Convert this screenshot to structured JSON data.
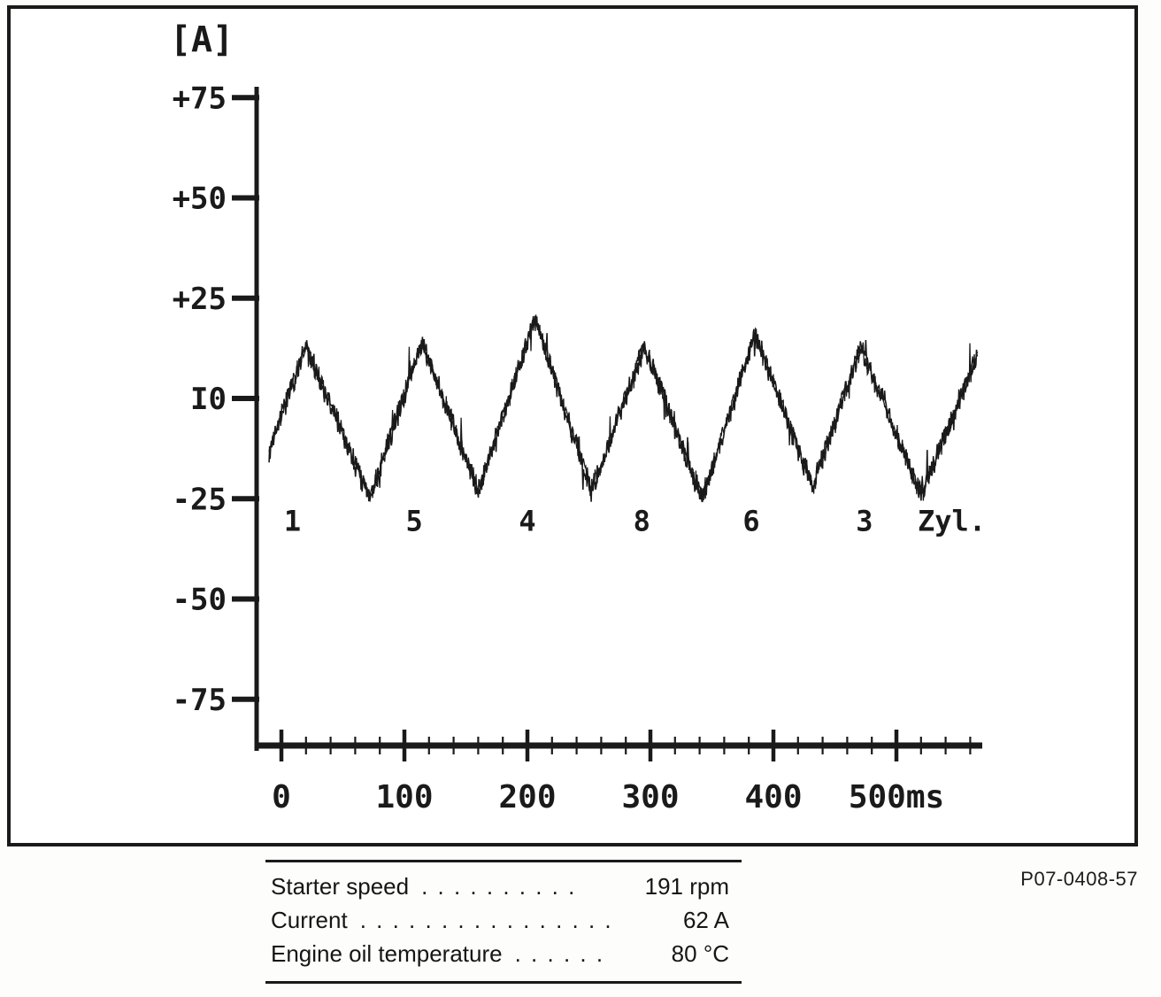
{
  "figure": {
    "ref_number": "P07-0408-57",
    "ink_color": "#1a1a1a"
  },
  "chart_data": {
    "type": "line",
    "y_unit_label": "[A]",
    "y_ticks": [
      {
        "label": "+75",
        "value": 75
      },
      {
        "label": "+50",
        "value": 50
      },
      {
        "label": "+25",
        "value": 25
      },
      {
        "label": "I0",
        "value": 0
      },
      {
        "label": "-25",
        "value": -25
      },
      {
        "label": "-50",
        "value": -50
      },
      {
        "label": "-75",
        "value": -75
      }
    ],
    "x_ticks": [
      {
        "label": "0",
        "value": 0
      },
      {
        "label": "100",
        "value": 100
      },
      {
        "label": "200",
        "value": 200
      },
      {
        "label": "300",
        "value": 300
      },
      {
        "label": "400",
        "value": 400
      },
      {
        "label": "500ms",
        "value": 500
      }
    ],
    "x_minor_tick_step_ms": 20,
    "x_range_ms": [
      0,
      565
    ],
    "y_range_a": [
      -90,
      85
    ],
    "cylinder_labels": [
      {
        "text": "1",
        "ms": 9
      },
      {
        "text": "5",
        "ms": 108
      },
      {
        "text": "4",
        "ms": 200
      },
      {
        "text": "8",
        "ms": 293
      },
      {
        "text": "6",
        "ms": 382
      },
      {
        "text": "3",
        "ms": 474
      },
      {
        "text": "Zyl.",
        "ms": 545
      }
    ],
    "cylinder_label_level_a": -33,
    "waveform": {
      "noise_amp_a": 3.2,
      "control_points_ms_a": [
        [
          -10,
          -13
        ],
        [
          20,
          13
        ],
        [
          72,
          -25
        ],
        [
          114,
          14
        ],
        [
          160,
          -23
        ],
        [
          206,
          20
        ],
        [
          252,
          -23
        ],
        [
          295,
          13
        ],
        [
          342,
          -25
        ],
        [
          385,
          16
        ],
        [
          432,
          -22
        ],
        [
          471,
          13
        ],
        [
          520,
          -24
        ],
        [
          566,
          11
        ]
      ]
    }
  },
  "legend_table": {
    "rows": [
      {
        "label": "Starter speed",
        "dots": ". . . . . . . . . .",
        "value": "191 rpm"
      },
      {
        "label": "Current",
        "dots": ". . . . . . . . . . . . . . . .",
        "value": "62 A"
      },
      {
        "label": "Engine oil temperature",
        "dots": ". . . . . .",
        "value": "80 °C"
      }
    ]
  }
}
